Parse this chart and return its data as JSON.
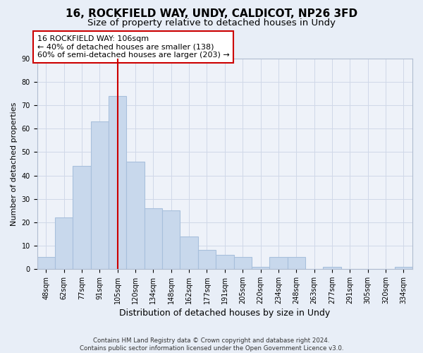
{
  "title": "16, ROCKFIELD WAY, UNDY, CALDICOT, NP26 3FD",
  "subtitle": "Size of property relative to detached houses in Undy",
  "xlabel": "Distribution of detached houses by size in Undy",
  "ylabel": "Number of detached properties",
  "bar_labels": [
    "48sqm",
    "62sqm",
    "77sqm",
    "91sqm",
    "105sqm",
    "120sqm",
    "134sqm",
    "148sqm",
    "162sqm",
    "177sqm",
    "191sqm",
    "205sqm",
    "220sqm",
    "234sqm",
    "248sqm",
    "263sqm",
    "277sqm",
    "291sqm",
    "305sqm",
    "320sqm",
    "334sqm"
  ],
  "bar_values": [
    5,
    22,
    44,
    63,
    74,
    46,
    26,
    25,
    14,
    8,
    6,
    5,
    1,
    5,
    5,
    0,
    1,
    0,
    0,
    0,
    1
  ],
  "bar_color": "#c8d8ec",
  "bar_edge_color": "#a8c0dc",
  "vline_x_index": 4,
  "vline_color": "#cc0000",
  "annotation_text": "16 ROCKFIELD WAY: 106sqm\n← 40% of detached houses are smaller (138)\n60% of semi-detached houses are larger (203) →",
  "ylim": [
    0,
    90
  ],
  "yticks": [
    0,
    10,
    20,
    30,
    40,
    50,
    60,
    70,
    80,
    90
  ],
  "footer_text": "Contains HM Land Registry data © Crown copyright and database right 2024.\nContains public sector information licensed under the Open Government Licence v3.0.",
  "bg_color": "#e8eef7",
  "plot_bg_color": "#eef2f9",
  "grid_color": "#d0d8e8",
  "title_fontsize": 11,
  "subtitle_fontsize": 9.5,
  "ylabel_fontsize": 8,
  "xlabel_fontsize": 9,
  "tick_fontsize": 7,
  "footer_fontsize": 6.2,
  "annot_fontsize": 8
}
